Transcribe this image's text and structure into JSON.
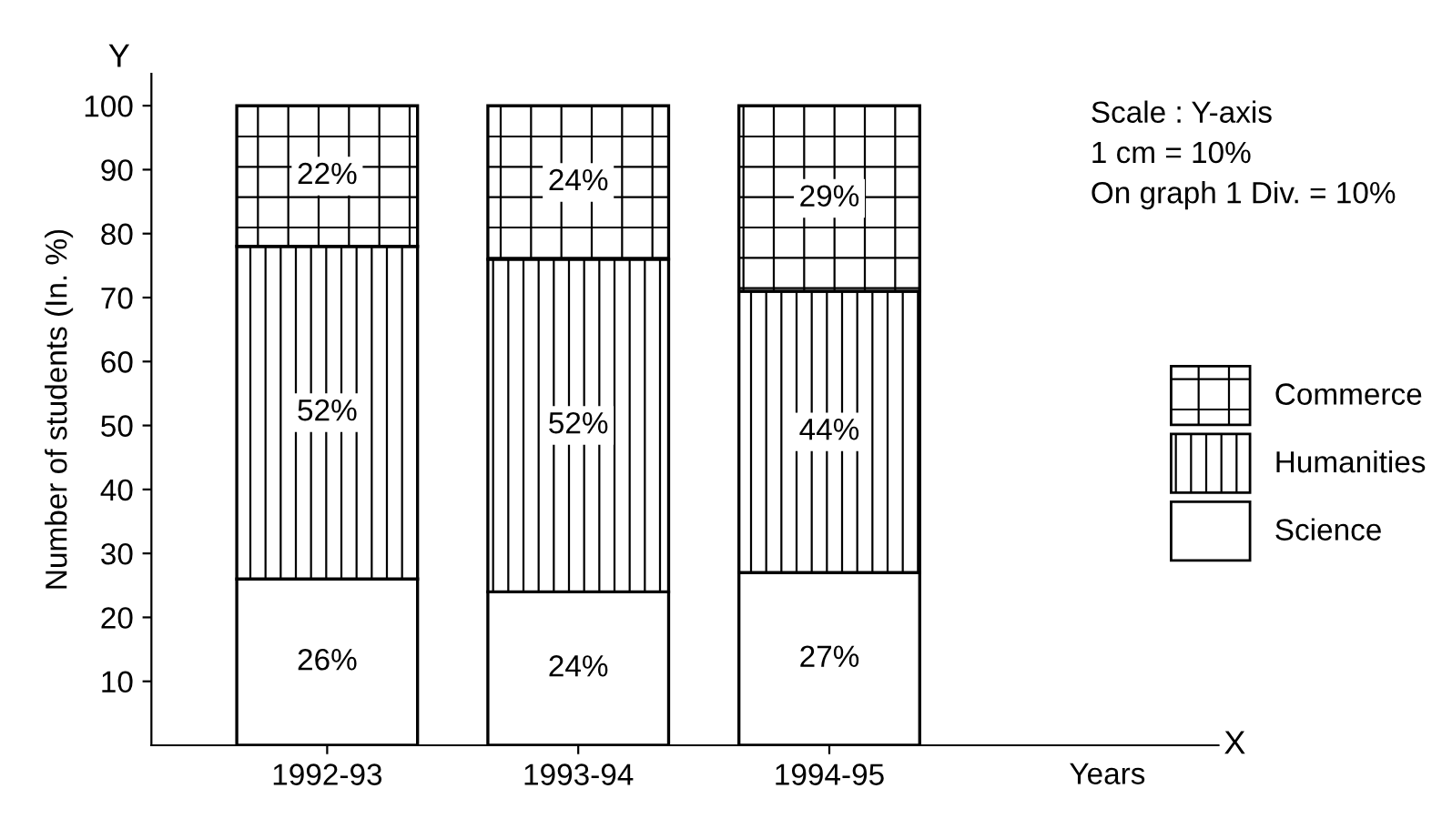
{
  "chart_data": {
    "type": "bar",
    "stacked": true,
    "categories": [
      "1992-93",
      "1993-94",
      "1994-95"
    ],
    "series": [
      {
        "name": "Science",
        "color": "#ffffff",
        "values": [
          26,
          24,
          27
        ],
        "value_labels": [
          "26%",
          "24%",
          "27%"
        ]
      },
      {
        "name": "Humanities",
        "color": "#000000",
        "values": [
          52,
          52,
          44
        ],
        "value_labels": [
          "52%",
          "52%",
          "44%"
        ]
      },
      {
        "name": "Commerce",
        "color": "#000000",
        "values": [
          22,
          24,
          29
        ],
        "value_labels": [
          "22%",
          "24%",
          "29%"
        ]
      }
    ],
    "ylabel": "Number of students (In. %)",
    "ylim": [
      0,
      105
    ],
    "yticks": [
      10,
      20,
      30,
      40,
      50,
      60,
      70,
      80,
      90,
      100
    ],
    "grid": false,
    "legend": "right",
    "annotations": [
      "Y",
      "X",
      "Years",
      "Scale : Y-axis",
      "1 cm = 10%",
      "On graph 1 Div. = 10%"
    ]
  }
}
